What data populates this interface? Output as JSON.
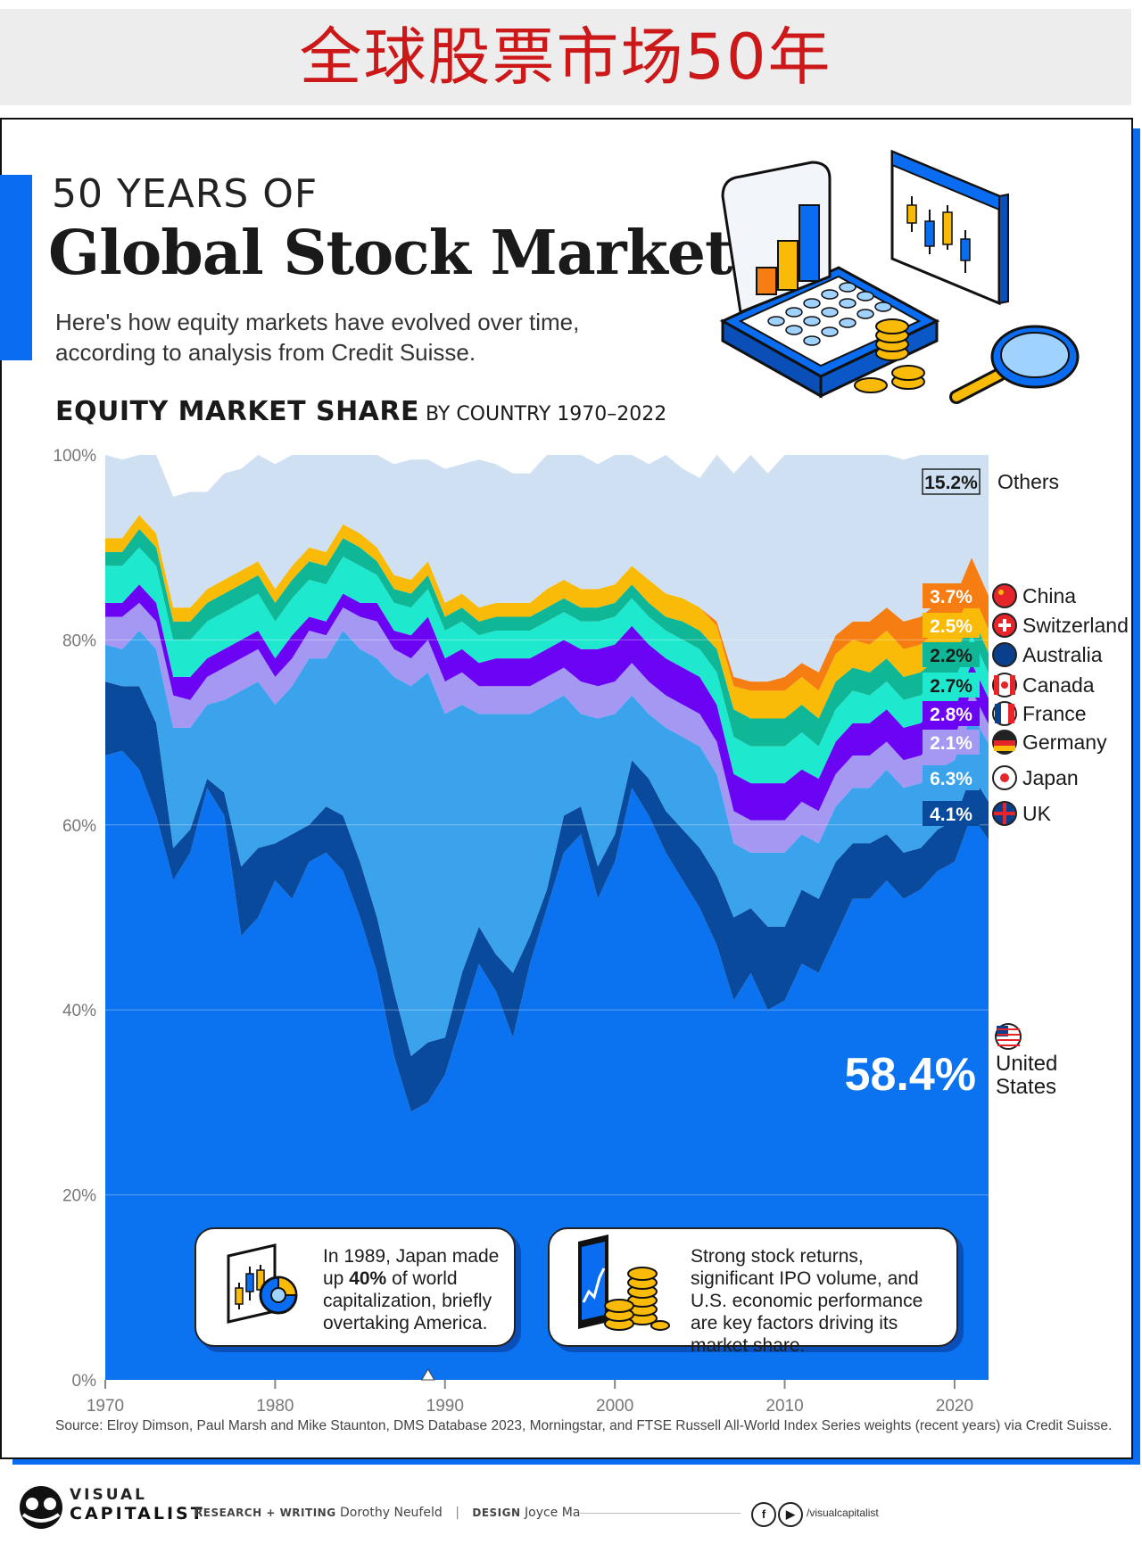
{
  "banner": {
    "title": "全球股票市场50年"
  },
  "header": {
    "kicker": "50 YEARS OF",
    "headline": "Global Stock Markets",
    "subtitle": "Here's how equity markets have evolved over time, according to analysis from Credit Suisse."
  },
  "chart_heading": {
    "strong": "EQUITY MARKET SHARE",
    "light": " BY COUNTRY 1970–2022"
  },
  "chart_data": {
    "type": "area",
    "stacked": true,
    "x": [
      1970,
      1971,
      1972,
      1973,
      1974,
      1975,
      1976,
      1977,
      1978,
      1979,
      1980,
      1981,
      1982,
      1983,
      1984,
      1985,
      1986,
      1987,
      1988,
      1989,
      1990,
      1991,
      1992,
      1993,
      1994,
      1995,
      1996,
      1997,
      1998,
      1999,
      2000,
      2001,
      2002,
      2003,
      2004,
      2005,
      2006,
      2007,
      2008,
      2009,
      2010,
      2011,
      2012,
      2013,
      2014,
      2015,
      2016,
      2017,
      2018,
      2019,
      2020,
      2021,
      2022
    ],
    "ylim": [
      0,
      100
    ],
    "y_ticks": [
      "0%",
      "20%",
      "40%",
      "60%",
      "80%",
      "100%"
    ],
    "x_ticks": [
      "1970",
      "1980",
      "1990",
      "2000",
      "2010",
      "2020"
    ],
    "grid": true,
    "series": [
      {
        "name": "United States",
        "color": "#0b72f0",
        "label": "58.4%",
        "values": [
          67.5,
          68,
          66,
          61,
          54,
          57,
          64,
          61,
          48,
          50,
          54,
          52,
          56,
          57,
          55,
          50,
          44,
          35,
          29,
          30,
          33,
          39,
          45,
          42,
          37,
          45,
          51,
          57,
          59,
          52,
          56,
          64,
          61,
          57,
          54,
          51,
          47,
          41,
          44,
          40,
          41,
          45,
          44,
          48,
          52,
          52,
          54,
          52,
          53,
          55,
          56,
          61,
          58.4
        ]
      },
      {
        "name": "UK",
        "color": "#0a4a9c",
        "label": "4.1%",
        "values": [
          8,
          7,
          9,
          10,
          3.5,
          2.5,
          1,
          2.5,
          7.5,
          7.5,
          4,
          7,
          4,
          5,
          6,
          6,
          6,
          7,
          6,
          6.5,
          4,
          5,
          4,
          4,
          7,
          3,
          2,
          4,
          3,
          3.5,
          3,
          3,
          4,
          4.5,
          5.5,
          6.5,
          7.5,
          9,
          7,
          9,
          8,
          8,
          8,
          8,
          6,
          6,
          5,
          5,
          4.5,
          4.5,
          4.5,
          4.5,
          4.1
        ]
      },
      {
        "name": "Japan",
        "color": "#3aa3ec",
        "label": "6.3%",
        "values": [
          4,
          4,
          6,
          8,
          13,
          11,
          8,
          10,
          19,
          18,
          15,
          16,
          18,
          16,
          20,
          23,
          28,
          34,
          40,
          40,
          35,
          29,
          23,
          26,
          28,
          24,
          20,
          13,
          10,
          16,
          13,
          7,
          7,
          9,
          10,
          11,
          11,
          8,
          6,
          8,
          8,
          6,
          6,
          6,
          6,
          6,
          7,
          7,
          7,
          6.5,
          6.5,
          6.5,
          6.3
        ]
      },
      {
        "name": "Germany",
        "color": "#a498f2",
        "label": "2.1%",
        "values": [
          3,
          3.5,
          3,
          3,
          3.5,
          3,
          3,
          3.5,
          3.5,
          3.5,
          3,
          3,
          3,
          2.5,
          2.5,
          3.5,
          4,
          3,
          3,
          3.5,
          3.5,
          3.5,
          3,
          3,
          3,
          3,
          3,
          3,
          3.5,
          3.5,
          3.5,
          3.5,
          3.5,
          3.5,
          3.5,
          3.5,
          3.5,
          3.5,
          3.5,
          3.5,
          3.5,
          3.5,
          3.5,
          3.5,
          3.5,
          3.5,
          3,
          3,
          3,
          3,
          2.5,
          2.5,
          2.1
        ]
      },
      {
        "name": "France",
        "color": "#6b04f3",
        "label": "2.8%",
        "values": [
          1.5,
          1.5,
          2,
          2,
          2,
          2.5,
          2,
          2,
          2,
          2,
          2,
          2.5,
          1.5,
          1.5,
          1.5,
          1.5,
          2,
          2,
          2.5,
          2.5,
          2.5,
          2.5,
          2.5,
          3,
          3,
          3,
          3,
          3,
          3.5,
          4,
          4,
          4,
          4,
          4,
          4,
          4,
          4,
          4,
          4,
          4,
          4,
          3.5,
          3.5,
          3.5,
          3.5,
          3.5,
          3.5,
          3.5,
          3.5,
          3.5,
          3,
          3,
          2.8
        ]
      },
      {
        "name": "Canada",
        "color": "#1ee8ce",
        "label": "2.7%",
        "values": [
          4,
          4,
          4,
          4,
          4,
          4,
          4,
          4,
          4,
          4,
          4,
          4,
          4,
          4,
          4,
          4,
          3,
          3,
          3,
          3,
          3,
          3,
          3,
          3,
          3,
          3,
          3,
          3,
          3,
          3,
          3,
          3,
          3,
          3,
          3,
          3,
          3.5,
          4,
          4,
          4,
          4,
          4,
          3.5,
          3.5,
          3.5,
          3,
          3,
          3,
          3,
          3,
          3,
          3,
          2.7
        ]
      },
      {
        "name": "Australia",
        "color": "#10b796",
        "label": "2.2%",
        "values": [
          1.5,
          1.5,
          2,
          2,
          2,
          2,
          2,
          2,
          2,
          2,
          2,
          2,
          2,
          2,
          2,
          2,
          1.5,
          1.5,
          1.5,
          1.5,
          1.5,
          1.5,
          1.5,
          1.5,
          1.5,
          1.5,
          1.5,
          1.5,
          1.5,
          1.5,
          1.5,
          1.5,
          1.5,
          1.5,
          2,
          2,
          2.5,
          3,
          3,
          3,
          3,
          3,
          3,
          3,
          2.5,
          2.5,
          2.5,
          2.5,
          2.5,
          2.5,
          2.5,
          2.2,
          2.2
        ]
      },
      {
        "name": "Switzerland",
        "color": "#f9ba08",
        "label": "2.5%",
        "values": [
          1.5,
          1.5,
          1.5,
          1.5,
          1.5,
          1.5,
          1.5,
          1.5,
          1.5,
          1.5,
          1.5,
          1.5,
          1.5,
          1.5,
          1.5,
          1.5,
          1.5,
          1.5,
          1.5,
          1.5,
          1.5,
          1.5,
          1.5,
          1.5,
          1.5,
          1.5,
          2,
          2,
          2,
          2,
          2,
          2,
          2.5,
          2.5,
          2.5,
          2.5,
          2.5,
          2.5,
          3,
          3,
          3,
          3,
          3,
          3,
          3,
          3,
          3,
          3,
          3,
          3,
          3,
          2.7,
          2.5
        ]
      },
      {
        "name": "China",
        "color": "#f57d12",
        "label": "3.7%",
        "values": [
          0,
          0,
          0,
          0,
          0,
          0,
          0,
          0,
          0,
          0,
          0,
          0,
          0,
          0,
          0,
          0,
          0,
          0,
          0,
          0,
          0,
          0,
          0,
          0,
          0,
          0,
          0,
          0,
          0,
          0,
          0,
          0,
          0,
          0,
          0,
          0,
          0.5,
          1,
          1,
          1,
          1.5,
          1.5,
          2,
          2,
          2,
          2.5,
          2.5,
          3,
          3,
          3,
          3.5,
          3.5,
          3.7
        ]
      },
      {
        "name": "Others",
        "color": "#cfe0f3",
        "label": "15.2%",
        "values": [
          9,
          8.5,
          8.5,
          8.5,
          12,
          12.5,
          10.5,
          11.5,
          11,
          11.5,
          13.5,
          13.5,
          12.5,
          12.5,
          12,
          10.5,
          11,
          12,
          13,
          11,
          14.5,
          14,
          16,
          15,
          14,
          14,
          14.5,
          14,
          14.5,
          13.5,
          14,
          15,
          12.5,
          15,
          14,
          14,
          20.5,
          22,
          24.5,
          22.5,
          25,
          24,
          23.5,
          21,
          19.5,
          18.5,
          17.5,
          17.5,
          17.5,
          17,
          17,
          15.6,
          15.2
        ]
      }
    ]
  },
  "callouts": [
    {
      "text_pre": "In 1989, Japan made up ",
      "text_bold": "40%",
      "text_post": " of world capitalization, briefly overtaking America."
    },
    {
      "text": "Strong stock returns, significant IPO volume, and U.S. economic performance are key factors driving its market share."
    }
  ],
  "source": "Source: Elroy Dimson, Paul Marsh and Mike Staunton, DMS Database 2023, Morningstar, and FTSE Russell All-World Index Series weights (recent years) via Credit Suisse.",
  "footer": {
    "brand_line1": "VISUAL",
    "brand_line2": "CAPITALIST",
    "research_label": "RESEARCH + WRITING",
    "research_name": "Dorothy Neufeld",
    "design_label": "DESIGN",
    "design_name": "Joyce Ma",
    "social_handle": "/visualcapitalist",
    "social_icons": [
      "facebook-icon",
      "youtube-icon"
    ]
  }
}
